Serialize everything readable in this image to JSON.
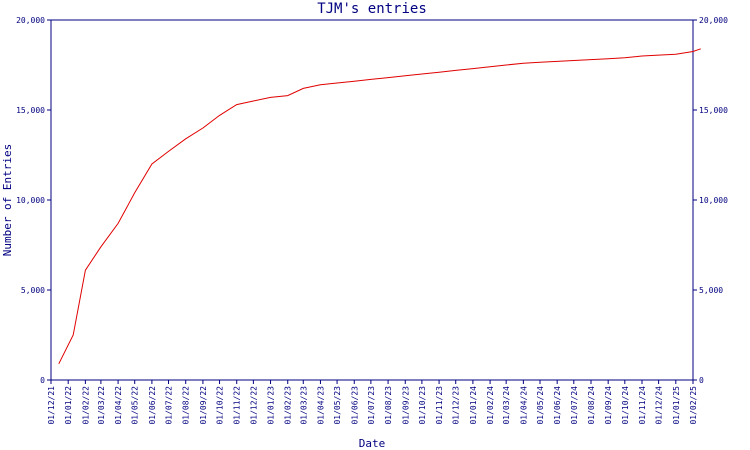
{
  "chart_data": {
    "type": "line",
    "title": "TJM's entries",
    "xlabel": "Date",
    "ylabel": "Number of Entries",
    "ylim": [
      0,
      20000
    ],
    "yticks": [
      {
        "value": 0,
        "label": "0"
      },
      {
        "value": 5000,
        "label": "5,000"
      },
      {
        "value": 10000,
        "label": "10,000"
      },
      {
        "value": 15000,
        "label": "15,000"
      },
      {
        "value": 20000,
        "label": "20,000"
      }
    ],
    "x_ticks": [
      "01/12/21",
      "01/01/22",
      "01/02/22",
      "01/03/22",
      "01/04/22",
      "01/05/22",
      "01/06/22",
      "01/07/22",
      "01/08/22",
      "01/09/22",
      "01/10/22",
      "01/11/22",
      "01/12/22",
      "01/01/23",
      "01/02/23",
      "01/03/23",
      "01/04/23",
      "01/05/23",
      "01/06/23",
      "01/07/23",
      "01/08/23",
      "01/09/23",
      "01/10/23",
      "01/11/23",
      "01/12/23",
      "01/01/24",
      "01/02/24",
      "01/03/24",
      "01/04/24",
      "01/05/24",
      "01/06/24",
      "01/07/24",
      "01/08/24",
      "01/09/24",
      "01/10/24",
      "01/11/24",
      "01/12/24",
      "01/01/25",
      "01/02/25"
    ],
    "grid": false,
    "color": "#e00000",
    "x": [
      "2021-12-15",
      "2022-01-10",
      "2022-02-01",
      "2022-03-01",
      "2022-04-01",
      "2022-05-01",
      "2022-06-01",
      "2022-07-01",
      "2022-08-01",
      "2022-09-01",
      "2022-10-01",
      "2022-11-01",
      "2022-12-01",
      "2023-01-01",
      "2023-02-01",
      "2023-03-01",
      "2023-04-01",
      "2023-05-01",
      "2023-06-01",
      "2023-07-01",
      "2023-08-01",
      "2023-09-01",
      "2023-10-01",
      "2023-11-01",
      "2023-12-01",
      "2024-01-01",
      "2024-02-01",
      "2024-03-01",
      "2024-04-01",
      "2024-05-01",
      "2024-06-01",
      "2024-07-01",
      "2024-08-01",
      "2024-09-01",
      "2024-10-01",
      "2024-11-01",
      "2024-12-01",
      "2025-01-01",
      "2025-02-01",
      "2025-02-15"
    ],
    "values": [
      900,
      2500,
      6100,
      7400,
      8700,
      10400,
      12000,
      12700,
      13400,
      14000,
      14700,
      15300,
      15500,
      15700,
      15800,
      16200,
      16400,
      16500,
      16600,
      16700,
      16800,
      16900,
      17000,
      17100,
      17200,
      17300,
      17400,
      17500,
      17600,
      17650,
      17700,
      17750,
      17800,
      17850,
      17900,
      18000,
      18050,
      18100,
      18250,
      18400
    ]
  }
}
